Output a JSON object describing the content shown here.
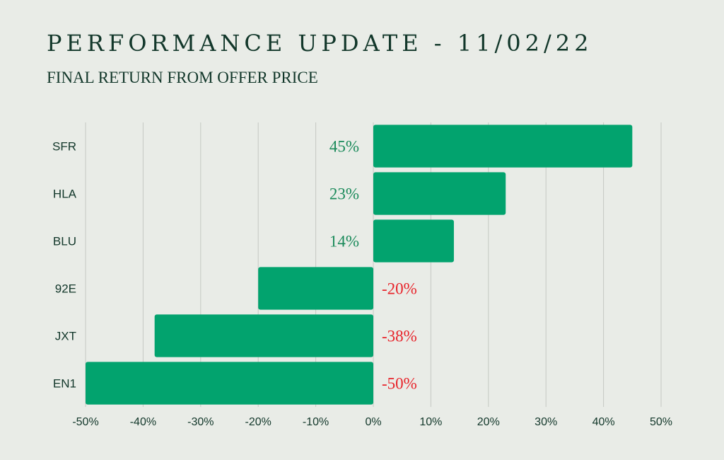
{
  "header": {
    "title": "PERFORMANCE UPDATE - 11/02/22",
    "subtitle": "FINAL RETURN FROM OFFER PRICE"
  },
  "colors": {
    "bar": "#02a36e",
    "positive_label": "#1a8a5a",
    "negative_label": "#e8232a",
    "grid": "#c5c9c3",
    "text": "#12372a"
  },
  "chart_data": {
    "type": "bar",
    "orientation": "horizontal",
    "title": "",
    "xlabel": "",
    "ylabel": "",
    "categories": [
      "SFR",
      "HLA",
      "BLU",
      "92E",
      "JXT",
      "EN1"
    ],
    "values": [
      45,
      23,
      14,
      -20,
      -38,
      -50
    ],
    "data_labels": [
      "45%",
      "23%",
      "14%",
      "-20%",
      "-38%",
      "-50%"
    ],
    "xlim": [
      -50,
      50
    ],
    "xticks": [
      -50,
      -40,
      -30,
      -20,
      -10,
      0,
      10,
      20,
      30,
      40,
      50
    ],
    "xtick_labels": [
      "-50%",
      "-40%",
      "-30%",
      "-20%",
      "-10%",
      "0%",
      "10%",
      "20%",
      "30%",
      "40%",
      "50%"
    ],
    "grid": true,
    "legend": "none"
  }
}
